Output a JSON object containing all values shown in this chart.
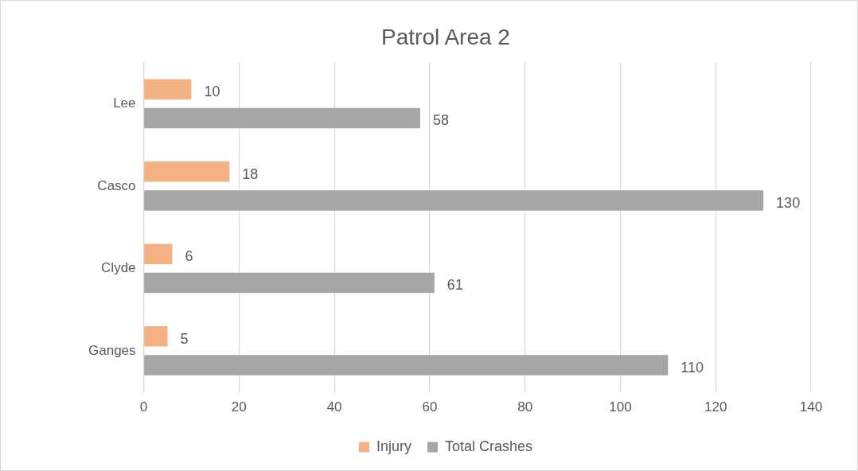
{
  "chart_data": {
    "type": "bar",
    "orientation": "horizontal",
    "title": "Patrol Area 2",
    "categories": [
      "Lee",
      "Casco",
      "Clyde",
      "Ganges"
    ],
    "series": [
      {
        "name": "Injury",
        "color": "#f4b183",
        "values": [
          10,
          18,
          6,
          5
        ]
      },
      {
        "name": "Total Crashes",
        "color": "#a6a6a6",
        "values": [
          58,
          130,
          61,
          110
        ]
      }
    ],
    "xlim": [
      0,
      140
    ],
    "xticks": [
      0,
      20,
      40,
      60,
      80,
      100,
      120,
      140
    ],
    "grid": "x",
    "legend": "bottom",
    "data_labels": true
  }
}
